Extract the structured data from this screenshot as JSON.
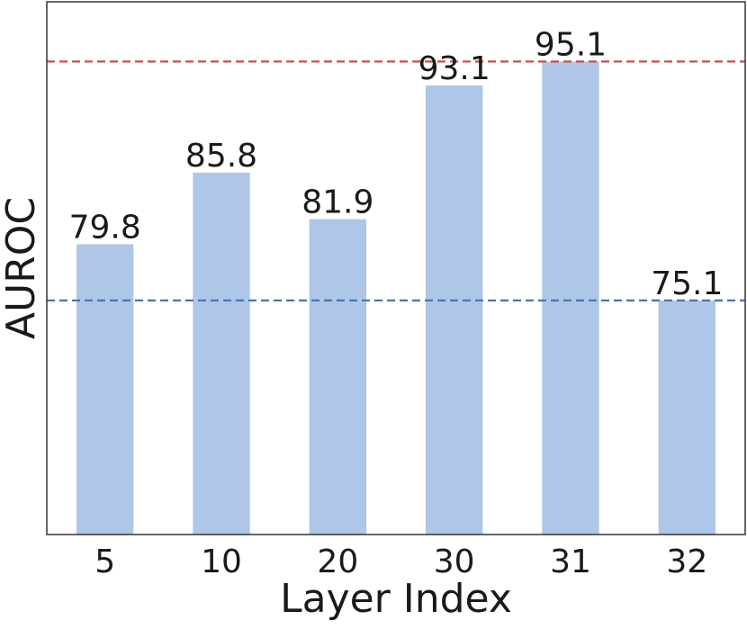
{
  "chart_data": {
    "type": "bar",
    "categories": [
      "5",
      "10",
      "20",
      "30",
      "31",
      "32"
    ],
    "values": [
      79.8,
      85.8,
      81.9,
      93.1,
      95.1,
      75.1
    ],
    "value_labels": [
      "79.8",
      "85.8",
      "81.9",
      "93.1",
      "95.1",
      "75.1"
    ],
    "title": "",
    "xlabel": "Layer Index",
    "ylabel": "AUROC",
    "ylim": [
      55.5,
      100.1
    ],
    "yticks_shown": false,
    "grid": false,
    "legend": "none",
    "reference_lines": [
      {
        "value": 95.1,
        "color": "#c44e52",
        "style": "dashed"
      },
      {
        "value": 75.1,
        "color": "#4c72b0",
        "style": "dashed"
      }
    ],
    "bar_color": "#aec7e8"
  }
}
